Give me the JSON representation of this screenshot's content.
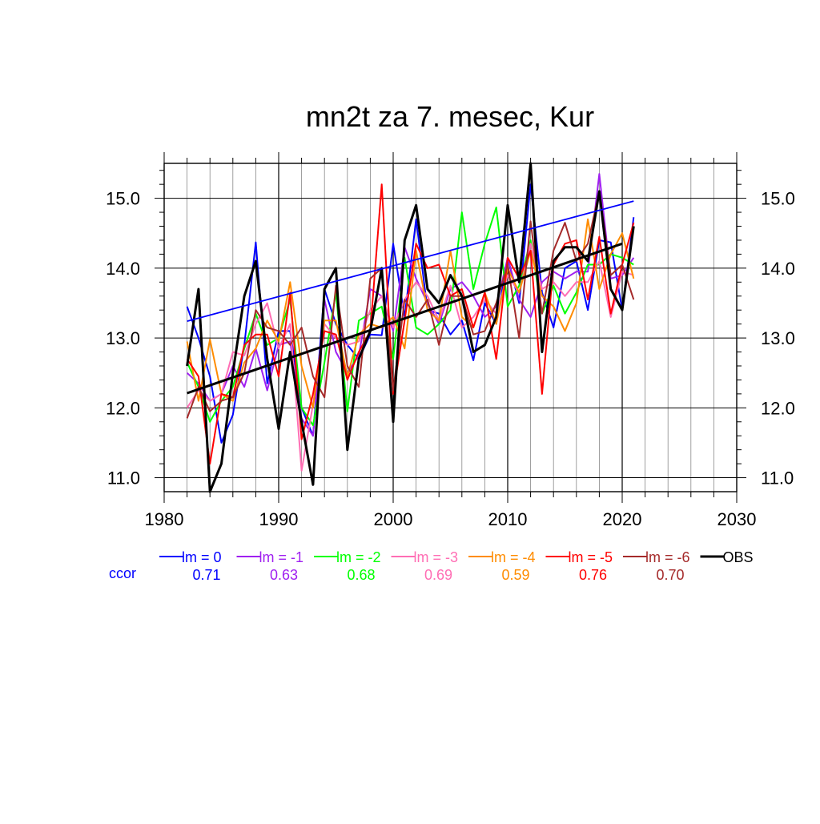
{
  "chart_data": {
    "type": "line",
    "title": "mn2t za 7. mesec, Kur",
    "xlabel": "",
    "ylabel": "",
    "xlim": [
      1980,
      2030
    ],
    "ylim": [
      10.8,
      15.5
    ],
    "x_ticks": [
      1980,
      1990,
      2000,
      2010,
      2020,
      2030
    ],
    "y_ticks": [
      11.0,
      12.0,
      13.0,
      14.0,
      15.0
    ],
    "x_tick_labels": [
      "1980",
      "1990",
      "2000",
      "2010",
      "2020",
      "2030"
    ],
    "y_tick_labels": [
      "11.0",
      "12.0",
      "13.0",
      "14.0",
      "15.0"
    ],
    "grid": true,
    "legend_position": "bottom",
    "ccor_label": "ccor",
    "ccor_color": "#0000ff",
    "x": [
      1982,
      1983,
      1984,
      1985,
      1986,
      1987,
      1988,
      1989,
      1990,
      1991,
      1992,
      1993,
      1994,
      1995,
      1996,
      1997,
      1998,
      1999,
      2000,
      2001,
      2002,
      2003,
      2004,
      2005,
      2006,
      2007,
      2008,
      2009,
      2010,
      2011,
      2012,
      2013,
      2014,
      2015,
      2016,
      2017,
      2018,
      2019,
      2020,
      2021
    ],
    "series": [
      {
        "name": "lm = 0",
        "color": "#0000ff",
        "ccor": "0.71",
        "values": [
          13.45,
          13.0,
          12.45,
          11.5,
          11.9,
          12.9,
          14.37,
          12.35,
          13.1,
          13.1,
          12.0,
          11.6,
          13.7,
          13.2,
          12.9,
          12.7,
          13.05,
          13.04,
          14.35,
          13.3,
          14.7,
          13.4,
          13.35,
          13.05,
          13.25,
          12.68,
          13.5,
          13.2,
          14.15,
          13.5,
          15.2,
          13.65,
          13.15,
          14.0,
          14.1,
          13.4,
          14.4,
          14.37,
          13.4,
          14.73
        ]
      },
      {
        "name": "lm = -1",
        "color": "#a020f0",
        "ccor": "0.63",
        "values": [
          12.5,
          12.35,
          12.1,
          12.2,
          12.6,
          12.3,
          12.85,
          12.25,
          12.9,
          12.95,
          11.85,
          11.6,
          13.55,
          12.8,
          12.5,
          12.75,
          13.7,
          13.6,
          13.1,
          14.3,
          13.85,
          13.5,
          13.2,
          13.7,
          13.8,
          13.6,
          13.3,
          13.45,
          14.15,
          13.55,
          13.3,
          13.8,
          13.95,
          13.85,
          13.95,
          13.95,
          15.35,
          13.85,
          13.9,
          14.15
        ]
      },
      {
        "name": "lm = -2",
        "color": "#00ff00",
        "ccor": "0.68",
        "values": [
          12.65,
          12.3,
          11.8,
          12.1,
          12.3,
          12.85,
          13.35,
          12.9,
          13.0,
          13.55,
          12.0,
          11.75,
          12.65,
          13.65,
          11.95,
          13.25,
          13.35,
          13.45,
          12.7,
          14.15,
          13.15,
          13.05,
          13.2,
          13.4,
          14.8,
          13.7,
          14.35,
          14.87,
          13.45,
          13.75,
          14.4,
          13.35,
          13.75,
          13.35,
          13.65,
          14.05,
          14.05,
          14.2,
          14.15,
          14.05
        ]
      },
      {
        "name": "lm = -3",
        "color": "#ff6eb4",
        "ccor": "0.69",
        "values": [
          12.0,
          12.25,
          12.1,
          12.2,
          12.8,
          12.75,
          13.2,
          13.5,
          12.85,
          13.2,
          11.1,
          12.05,
          13.2,
          13.0,
          12.9,
          12.95,
          13.4,
          13.6,
          13.15,
          13.55,
          13.8,
          13.6,
          13.25,
          13.75,
          13.15,
          13.3,
          13.55,
          13.35,
          13.9,
          13.65,
          14.35,
          13.7,
          13.8,
          13.6,
          13.8,
          13.8,
          14.1,
          13.3,
          13.95,
          13.9
        ]
      },
      {
        "name": "lm = -4",
        "color": "#ff8c00",
        "ccor": "0.59",
        "values": [
          12.95,
          12.1,
          12.98,
          12.2,
          12.1,
          12.65,
          12.85,
          13.25,
          12.95,
          13.8,
          12.6,
          12.0,
          13.25,
          13.25,
          12.45,
          13.05,
          13.2,
          13.15,
          13.3,
          12.85,
          14.25,
          13.4,
          13.25,
          14.25,
          13.3,
          13.15,
          13.65,
          13.2,
          14.0,
          13.65,
          14.25,
          13.6,
          13.45,
          13.1,
          13.5,
          14.7,
          13.7,
          14.2,
          14.5,
          13.85
        ]
      },
      {
        "name": "lm = -5",
        "color": "#ff0000",
        "ccor": "0.76",
        "values": [
          12.7,
          12.45,
          11.2,
          12.2,
          12.15,
          12.9,
          13.05,
          13.05,
          12.45,
          13.65,
          11.55,
          12.2,
          13.1,
          13.05,
          12.4,
          12.8,
          13.1,
          15.2,
          12.2,
          13.25,
          14.35,
          14.0,
          14.05,
          13.6,
          13.7,
          13.15,
          13.65,
          12.7,
          14.15,
          13.85,
          14.25,
          12.2,
          14.05,
          14.35,
          14.4,
          13.55,
          14.45,
          13.35,
          14.05,
          14.65
        ]
      },
      {
        "name": "lm = -6",
        "color": "#a52a2a",
        "ccor": "0.70",
        "values": [
          11.85,
          12.3,
          11.95,
          12.1,
          12.15,
          12.5,
          13.4,
          13.15,
          13.1,
          12.9,
          13.15,
          12.45,
          12.15,
          13.75,
          12.6,
          12.3,
          13.85,
          14.0,
          12.25,
          13.55,
          13.3,
          13.55,
          12.9,
          13.6,
          13.6,
          13.05,
          13.1,
          13.5,
          14.05,
          13.0,
          14.67,
          13.35,
          14.25,
          14.65,
          14.1,
          14.35,
          15.1,
          13.9,
          14.05,
          13.55
        ]
      },
      {
        "name": "OBS",
        "color": "#000000",
        "ccor": "",
        "values": [
          12.6,
          13.7,
          10.8,
          11.2,
          12.5,
          13.6,
          14.1,
          12.7,
          11.7,
          12.8,
          11.8,
          10.9,
          13.7,
          14.0,
          11.4,
          12.7,
          13.1,
          14.0,
          11.8,
          14.4,
          14.9,
          13.7,
          13.5,
          13.9,
          13.6,
          12.8,
          12.9,
          13.3,
          14.9,
          13.8,
          15.5,
          12.8,
          14.1,
          14.3,
          14.3,
          14.1,
          15.1,
          13.7,
          13.4,
          14.6
        ]
      }
    ],
    "trend_lines": [
      {
        "of": "lm = 0",
        "color": "#0000ff",
        "x": [
          1982,
          2021
        ],
        "y": [
          13.24,
          14.96
        ]
      },
      {
        "of": "OBS",
        "color": "#000000",
        "x": [
          1982,
          2020
        ],
        "y": [
          12.21,
          14.35
        ]
      }
    ]
  }
}
